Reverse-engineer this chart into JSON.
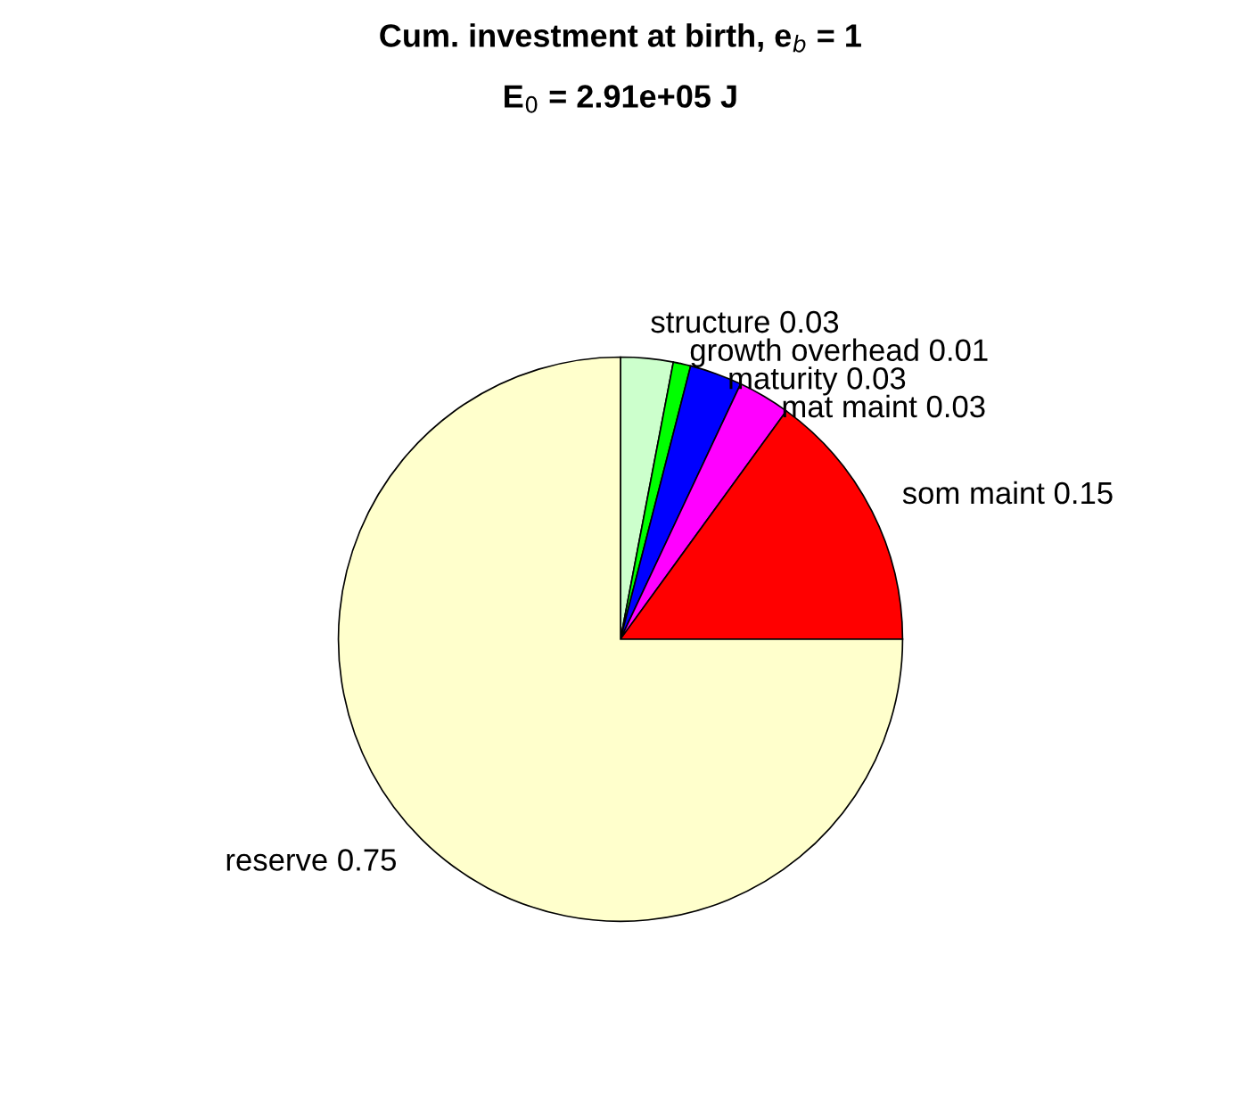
{
  "chart_data": {
    "type": "pie",
    "title": "Cum. investment at birth, e$_{b}$ = 1",
    "subtitle": "E$_{0}$ = 2.91e+05 J",
    "categories": [
      "structure 0.03",
      "growth overhead 0.01",
      "maturity 0.03",
      "mat maint 0.03",
      "som maint 0.15",
      "reserve 0.75"
    ],
    "values": [
      0.03,
      0.01,
      0.03,
      0.03,
      0.15,
      0.75
    ],
    "colors": [
      "#ccffcc",
      "#00ff00",
      "#0000ff",
      "#ff00ff",
      "#ff0000",
      "#ffffcc"
    ]
  }
}
